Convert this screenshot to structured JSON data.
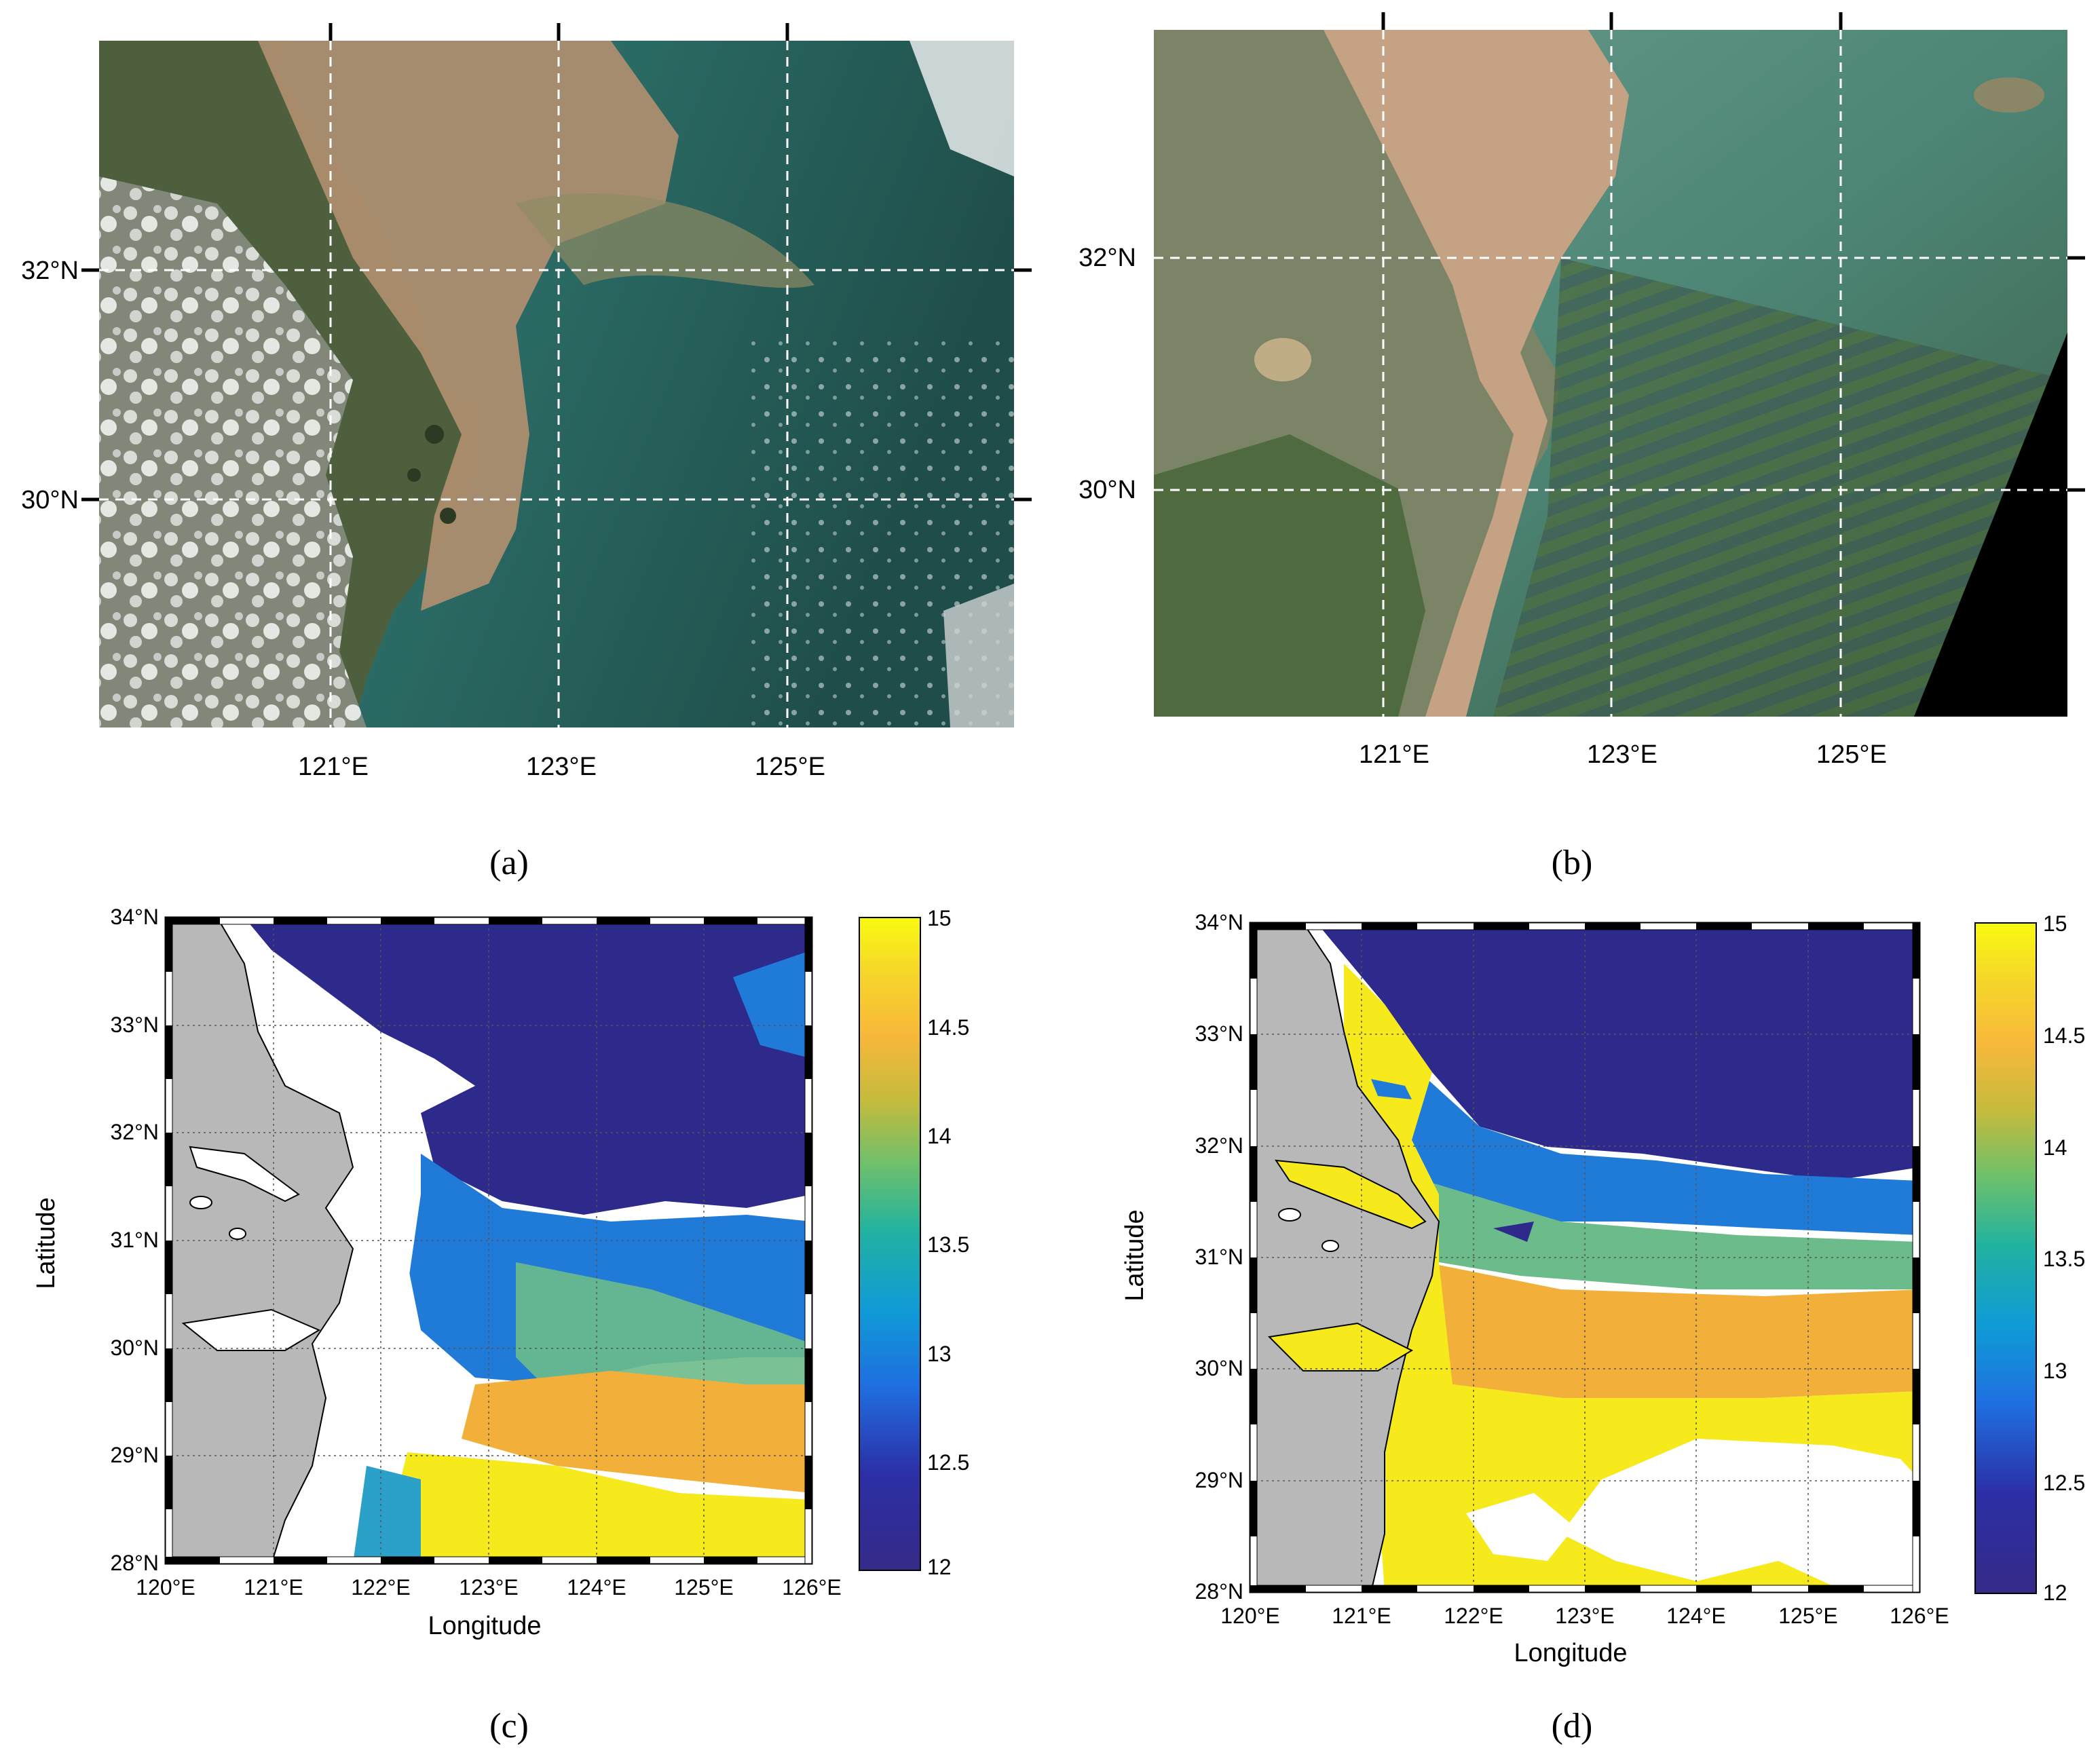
{
  "figure": {
    "panels": [
      {
        "id": "a",
        "caption": "(a)",
        "kind": "true-color-satellite",
        "lon_ticks": [
          "121°E",
          "123°E",
          "125°E"
        ],
        "lat_ticks": [
          "32°N",
          "30°N"
        ]
      },
      {
        "id": "b",
        "caption": "(b)",
        "kind": "true-color-satellite",
        "lon_ticks": [
          "121°E",
          "123°E",
          "125°E"
        ],
        "lat_ticks": [
          "32°N",
          "30°N"
        ]
      },
      {
        "id": "c",
        "caption": "(c)",
        "kind": "gridded-map",
        "xlabel": "Longitude",
        "ylabel": "Latitude",
        "lon_ticks": [
          "120°E",
          "121°E",
          "122°E",
          "123°E",
          "124°E",
          "125°E",
          "126°E"
        ],
        "lat_ticks": [
          "34°N",
          "33°N",
          "32°N",
          "31°N",
          "30°N",
          "29°N",
          "28°N"
        ],
        "colorbar": {
          "min": 12,
          "max": 15,
          "ticks": [
            "15",
            "14.5",
            "14",
            "13.5",
            "13",
            "12.5",
            "12"
          ]
        }
      },
      {
        "id": "d",
        "caption": "(d)",
        "kind": "gridded-map",
        "xlabel": "Longitude",
        "ylabel": "Latitude",
        "lon_ticks": [
          "120°E",
          "121°E",
          "122°E",
          "123°E",
          "124°E",
          "125°E",
          "126°E"
        ],
        "lat_ticks": [
          "34°N",
          "33°N",
          "32°N",
          "31°N",
          "30°N",
          "29°N",
          "28°N"
        ],
        "colorbar": {
          "min": 12,
          "max": 15,
          "ticks": [
            "15",
            "14.5",
            "14",
            "13.5",
            "13",
            "12.5",
            "12"
          ]
        }
      }
    ],
    "colors": {
      "land_gray": "#b8b8b8",
      "low_value": "#2e2a8c",
      "high_value": "#f8ee18",
      "sediment": "#b98f6a",
      "sea_green": "#2f6e64"
    }
  }
}
